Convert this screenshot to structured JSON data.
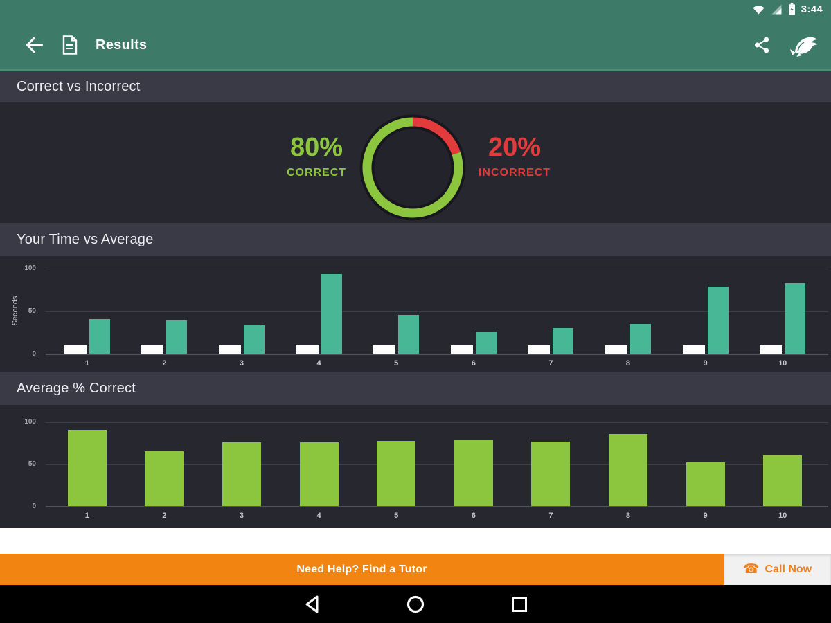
{
  "status_bar": {
    "time": "3:44"
  },
  "app_bar": {
    "title": "Results"
  },
  "icons": {
    "back": "arrow-left",
    "document": "document-page",
    "share": "share-nodes",
    "logo": "jumping-fish",
    "wifi": "wifi-signal",
    "cellular": "cellular-signal",
    "battery": "battery-charging",
    "phone": "telephone",
    "nav_back": "triangle-left",
    "nav_home": "circle",
    "nav_recents": "square"
  },
  "colors": {
    "appbar_green": "#3d7a67",
    "section_header_bg": "#3a3a46",
    "panel_bg": "#27272f",
    "lime_green": "#8cc63f",
    "red": "#e23b3b",
    "teal": "#47b795",
    "white_bar": "#ffffff",
    "banner_orange": "#f28411",
    "call_orange": "#ef7f1a",
    "nav_black": "#000000"
  },
  "sections": {
    "donut": {
      "header": "Correct vs Incorrect",
      "correct_pct": "80%",
      "correct_label": "CORRECT",
      "incorrect_pct": "20%",
      "incorrect_label": "INCORRECT"
    },
    "time": {
      "header": "Your Time vs Average"
    },
    "avg": {
      "header": "Average % Correct"
    }
  },
  "banner": {
    "tutor_label": "Need Help? Find a Tutor",
    "call_label": "Call Now"
  },
  "chart_data": [
    {
      "type": "pie",
      "title": "Correct vs Incorrect",
      "note": "donut, slices drawn clockwise from top",
      "slices": [
        {
          "label": "INCORRECT",
          "value": 20,
          "color": "#e23b3b"
        },
        {
          "label": "CORRECT",
          "value": 80,
          "color": "#8cc63f"
        }
      ]
    },
    {
      "type": "bar",
      "title": "Your Time vs Average",
      "xlabel": "",
      "ylabel": "Seconds",
      "ylim": [
        0,
        100
      ],
      "yticks": [
        0,
        50,
        100
      ],
      "grid": true,
      "legend": "none",
      "categories": [
        "1",
        "2",
        "3",
        "4",
        "5",
        "6",
        "7",
        "8",
        "9",
        "10"
      ],
      "series": [
        {
          "name": "Your Time",
          "color": "#ffffff",
          "values": [
            10,
            10,
            10,
            10,
            10,
            10,
            10,
            10,
            10,
            10
          ]
        },
        {
          "name": "Average",
          "color": "#47b795",
          "values": [
            40,
            39,
            33,
            93,
            45,
            26,
            30,
            35,
            78,
            82
          ]
        }
      ]
    },
    {
      "type": "bar",
      "title": "Average % Correct",
      "xlabel": "",
      "ylabel": "",
      "ylim": [
        0,
        100
      ],
      "yticks": [
        0,
        50,
        100
      ],
      "grid": true,
      "legend": "none",
      "categories": [
        "1",
        "2",
        "3",
        "4",
        "5",
        "6",
        "7",
        "8",
        "9",
        "10"
      ],
      "series": [
        {
          "name": "Average % Correct",
          "color": "#8cc63f",
          "values": [
            90,
            65,
            75,
            75,
            77,
            79,
            76,
            85,
            52,
            60
          ]
        }
      ]
    }
  ]
}
